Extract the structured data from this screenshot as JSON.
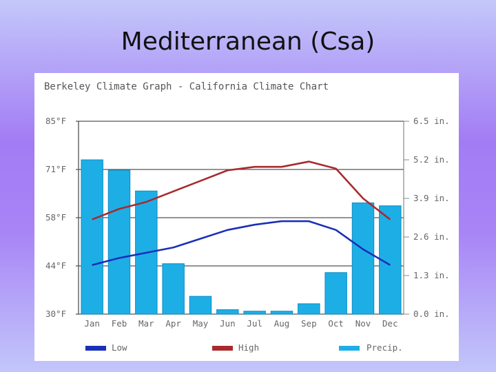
{
  "slide": {
    "title": "Mediterranean (Csa)"
  },
  "colors": {
    "low": "#1a2fb8",
    "high": "#a82a2e",
    "precip": "#1eaee6",
    "precip_edge": "#0e8cc4",
    "grid": "#555555"
  },
  "chart_data": {
    "type": "bar",
    "title": "Berkeley Climate Graph - California Climate Chart",
    "categories": [
      "Jan",
      "Feb",
      "Mar",
      "Apr",
      "May",
      "Jun",
      "Jul",
      "Aug",
      "Sep",
      "Oct",
      "Nov",
      "Dec"
    ],
    "y_left": {
      "ticks": [
        "85°F",
        "71°F",
        "58°F",
        "44°F",
        "30°F"
      ],
      "ylim": [
        30,
        85
      ],
      "unit": "°F"
    },
    "y_right": {
      "ticks": [
        "6.5 in.",
        "5.2 in.",
        "3.9 in.",
        "2.6 in.",
        "1.3 in.",
        "0.0 in."
      ],
      "ylim": [
        0,
        6.5
      ],
      "unit": "in."
    },
    "grid": true,
    "legend_position": "bottom",
    "series": [
      {
        "name": "Precip.",
        "kind": "bar",
        "axis": "right",
        "values": [
          5.2,
          4.85,
          4.15,
          1.7,
          0.6,
          0.15,
          0.1,
          0.1,
          0.35,
          1.4,
          3.75,
          3.65
        ]
      },
      {
        "name": "Low",
        "kind": "line",
        "axis": "left",
        "values": [
          44,
          46,
          47.5,
          49,
          51.5,
          54,
          55.5,
          56.5,
          56.5,
          54,
          48.5,
          44
        ]
      },
      {
        "name": "High",
        "kind": "line",
        "axis": "left",
        "values": [
          57,
          60,
          62,
          65,
          68,
          71,
          72,
          72,
          73.5,
          71.5,
          63,
          57
        ]
      }
    ]
  }
}
